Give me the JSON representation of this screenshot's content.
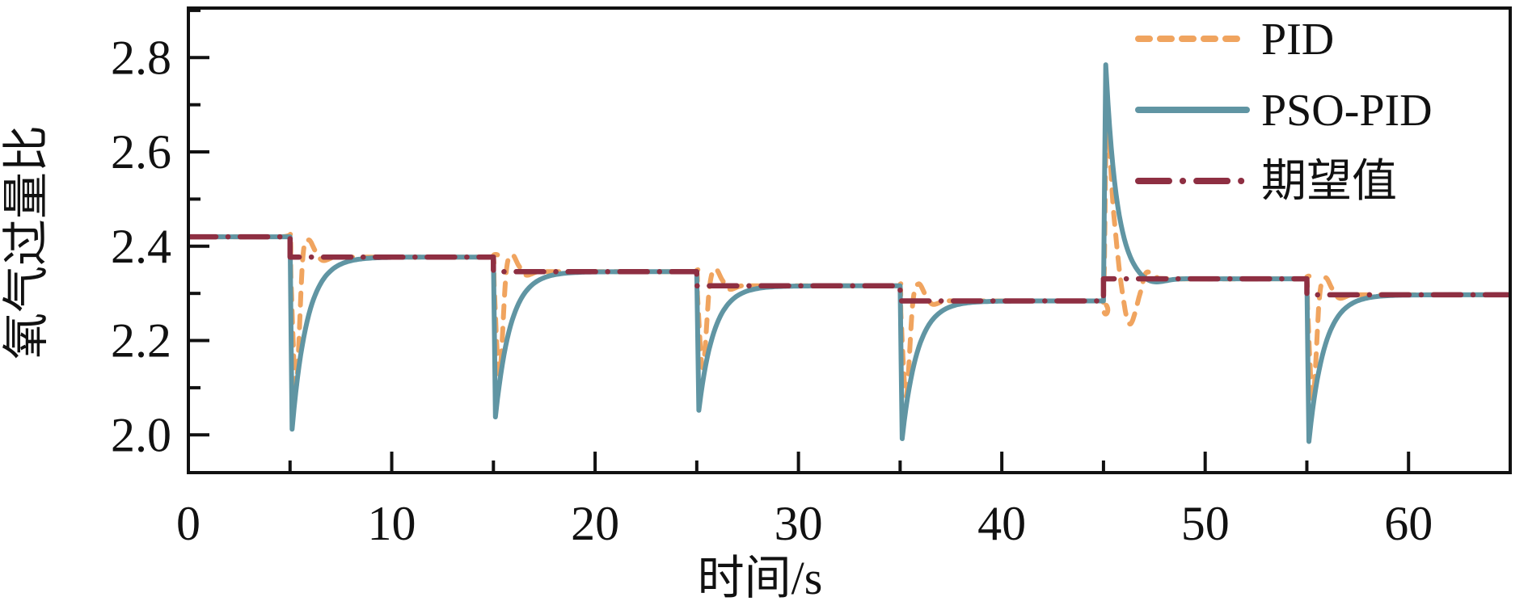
{
  "chart_data": {
    "type": "line",
    "title": "",
    "xlabel": "时间/s",
    "ylabel": "氧气过量比",
    "xlim": [
      0,
      65
    ],
    "ylim": [
      1.92,
      2.905
    ],
    "grid": false,
    "legend_position": "top-right-inside",
    "x_major_ticks": [
      0,
      10,
      20,
      30,
      40,
      50,
      60
    ],
    "x_minor_ticks": [
      5,
      15,
      25,
      35,
      45,
      55
    ],
    "y_major_ticks": [
      2.0,
      2.2,
      2.4,
      2.6,
      2.8
    ],
    "y_minor_ticks": [
      2.1,
      2.3,
      2.5,
      2.7,
      2.9
    ],
    "colors": {
      "pid": "#F0A45F",
      "pso_pid": "#6095A3",
      "setpoint": "#8E2F42",
      "axis": "#111111",
      "background": "#ffffff"
    },
    "legend": [
      {
        "name": "PID",
        "color": "#F0A45F",
        "style": "dashed"
      },
      {
        "name": "PSO-PID",
        "color": "#6095A3",
        "style": "solid"
      },
      {
        "name": "期望值",
        "color": "#8E2F42",
        "style": "dashdot"
      }
    ],
    "setpoint": {
      "description": "期望值 step reference, oxygen excess ratio",
      "step_times": [
        5,
        15,
        25,
        35,
        45,
        55
      ],
      "levels": [
        2.42,
        2.377,
        2.346,
        2.316,
        2.284,
        2.331,
        2.297
      ],
      "t_start": 0,
      "t_end": 65
    },
    "pso_pid": {
      "description": "PSO-PID response: deep narrow dip at each downward step, exponential recovery without overshoot; large upward spike at t=45",
      "dip_minima": {
        "5": 2.012,
        "15": 2.038,
        "25": 2.052,
        "35": 1.992,
        "55": 1.986
      },
      "spike_time": 45,
      "spike_peak": 2.785,
      "recovery_tau_s": 0.75,
      "spike_decay_tau_s": 0.55,
      "settle_time_s": 3.0
    },
    "pid": {
      "description": "PID response: shallower dip, then overshoot ~+0.036 above setpoint before settling; at t=45 spikes to ~2.66 then undershoots to ~2.235",
      "dip_minima": {
        "5": 2.102,
        "15": 2.128,
        "25": 2.142,
        "35": 2.082,
        "55": 2.076
      },
      "overshoot": 0.036,
      "up_step_peak": 2.66,
      "up_step_undershoot": 2.235,
      "settle_time_s": 3.2
    }
  }
}
